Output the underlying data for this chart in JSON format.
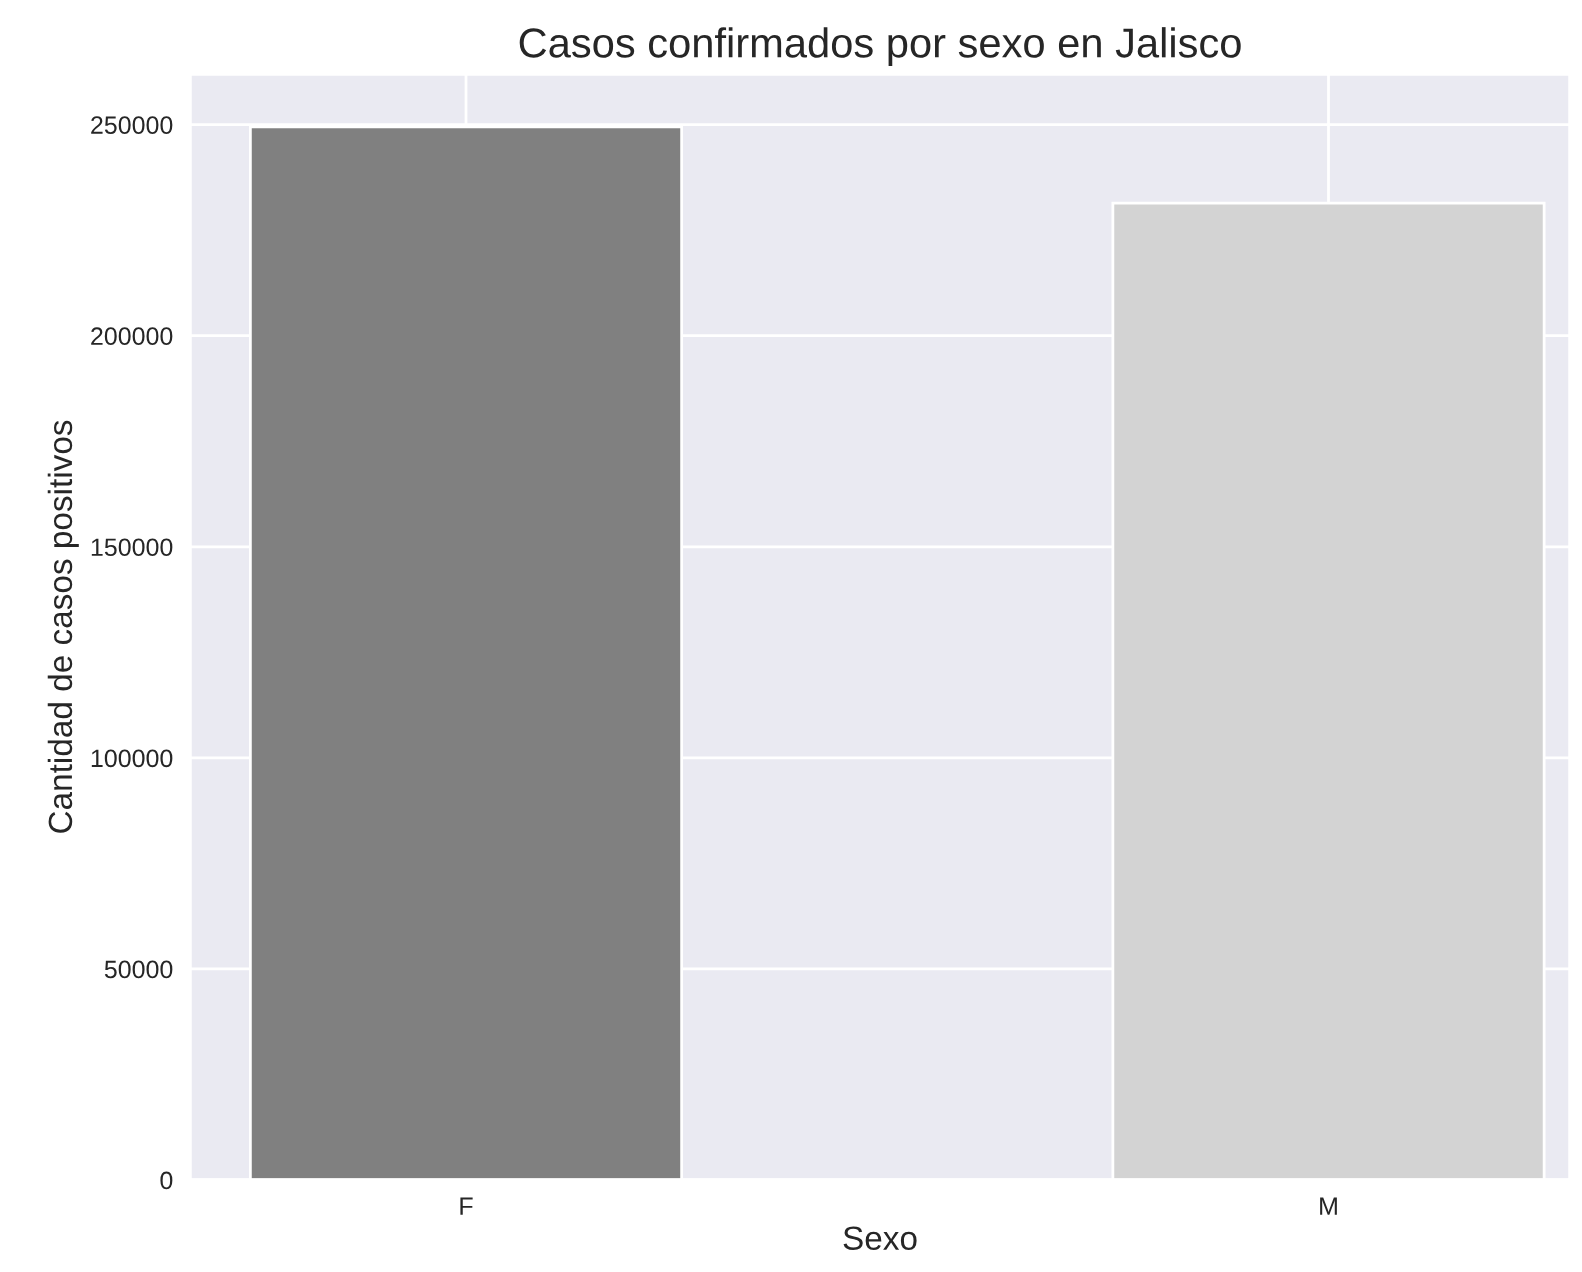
{
  "chart_data": {
    "type": "bar",
    "title": "Casos confirmados por sexo en Jalisco",
    "xlabel": "Sexo",
    "ylabel": "Cantidad de casos positivos",
    "categories": [
      "F",
      "M"
    ],
    "values": [
      249500,
      231400
    ],
    "colors": [
      "#808080",
      "#d3d3d3"
    ],
    "ylim": [
      0,
      262000
    ],
    "yticks": [
      0,
      50000,
      100000,
      150000,
      200000,
      250000
    ],
    "grid": true
  }
}
